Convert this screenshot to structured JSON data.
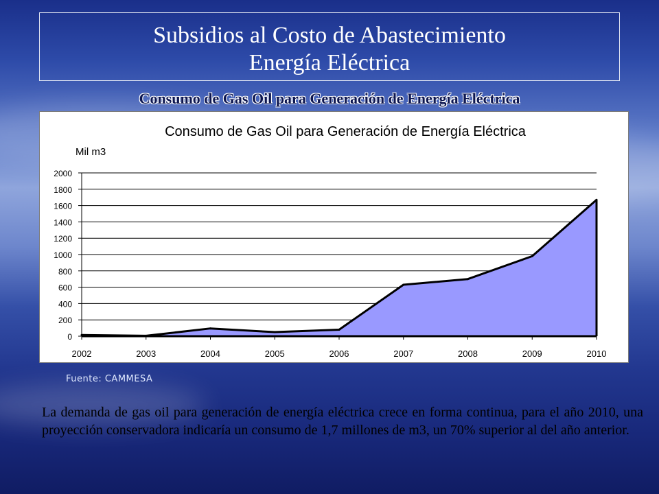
{
  "slide": {
    "title_line1": "Subsidios al Costo de Abastecimiento",
    "title_line2": "Energía Eléctrica",
    "subtitle": "Consumo de Gas Oil para Generación de Energía Eléctrica",
    "source": "Fuente: CAMMESA",
    "body": "La demanda de gas oil para generación de energía eléctrica crece en forma continua, para el año 2010, una proyección conservadora indicaría un consumo de 1,7 millones de m3, un 70% superior al del año anterior."
  },
  "colors": {
    "area_fill": "#9999ff",
    "line": "#000000",
    "grid": "#000000"
  },
  "chart_data": {
    "type": "area",
    "title": "Consumo de Gas Oil para Generación de Energía Eléctrica",
    "ylabel": "Mil m3",
    "xlabel": "",
    "categories": [
      "2002",
      "2003",
      "2004",
      "2005",
      "2006",
      "2007",
      "2008",
      "2009",
      "2010"
    ],
    "values": [
      15,
      5,
      95,
      50,
      80,
      630,
      700,
      980,
      1670
    ],
    "ylim": [
      0,
      2000
    ],
    "yticks": [
      0,
      200,
      400,
      600,
      800,
      1000,
      1200,
      1400,
      1600,
      1800,
      2000
    ],
    "grid": true,
    "legend": "none"
  }
}
